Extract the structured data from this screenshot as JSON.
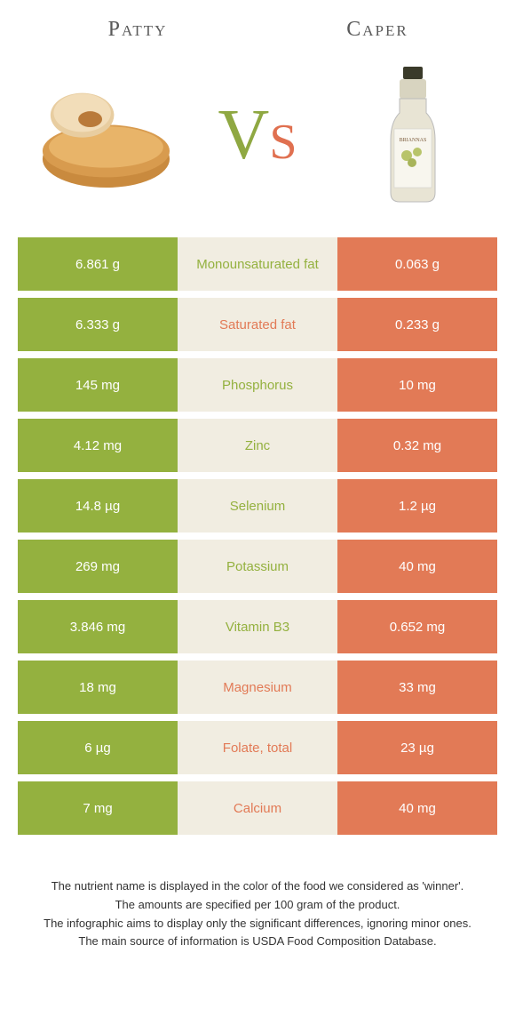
{
  "header": {
    "left": "Patty",
    "right": "Caper"
  },
  "vs": {
    "v": "V",
    "s": "s"
  },
  "colors": {
    "green": "#94b13f",
    "orange": "#e27a56",
    "beige": "#f1ede1"
  },
  "rows": [
    {
      "left": "6.861 g",
      "label": "Monounsaturated fat",
      "right": "0.063 g",
      "winner": "green"
    },
    {
      "left": "6.333 g",
      "label": "Saturated fat",
      "right": "0.233 g",
      "winner": "orange"
    },
    {
      "left": "145 mg",
      "label": "Phosphorus",
      "right": "10 mg",
      "winner": "green"
    },
    {
      "left": "4.12 mg",
      "label": "Zinc",
      "right": "0.32 mg",
      "winner": "green"
    },
    {
      "left": "14.8 µg",
      "label": "Selenium",
      "right": "1.2 µg",
      "winner": "green"
    },
    {
      "left": "269 mg",
      "label": "Potassium",
      "right": "40 mg",
      "winner": "green"
    },
    {
      "left": "3.846 mg",
      "label": "Vitamin B3",
      "right": "0.652 mg",
      "winner": "green"
    },
    {
      "left": "18 mg",
      "label": "Magnesium",
      "right": "33 mg",
      "winner": "orange"
    },
    {
      "left": "6 µg",
      "label": "Folate, total",
      "right": "23 µg",
      "winner": "orange"
    },
    {
      "left": "7 mg",
      "label": "Calcium",
      "right": "40 mg",
      "winner": "orange"
    }
  ],
  "footer": {
    "l1": "The nutrient name is displayed in the color of the food we considered as 'winner'.",
    "l2": "The amounts are specified per 100 gram of the product.",
    "l3": "The infographic aims to display only the significant differences, ignoring minor ones.",
    "l4": "The main source of information is USDA Food Composition Database."
  }
}
